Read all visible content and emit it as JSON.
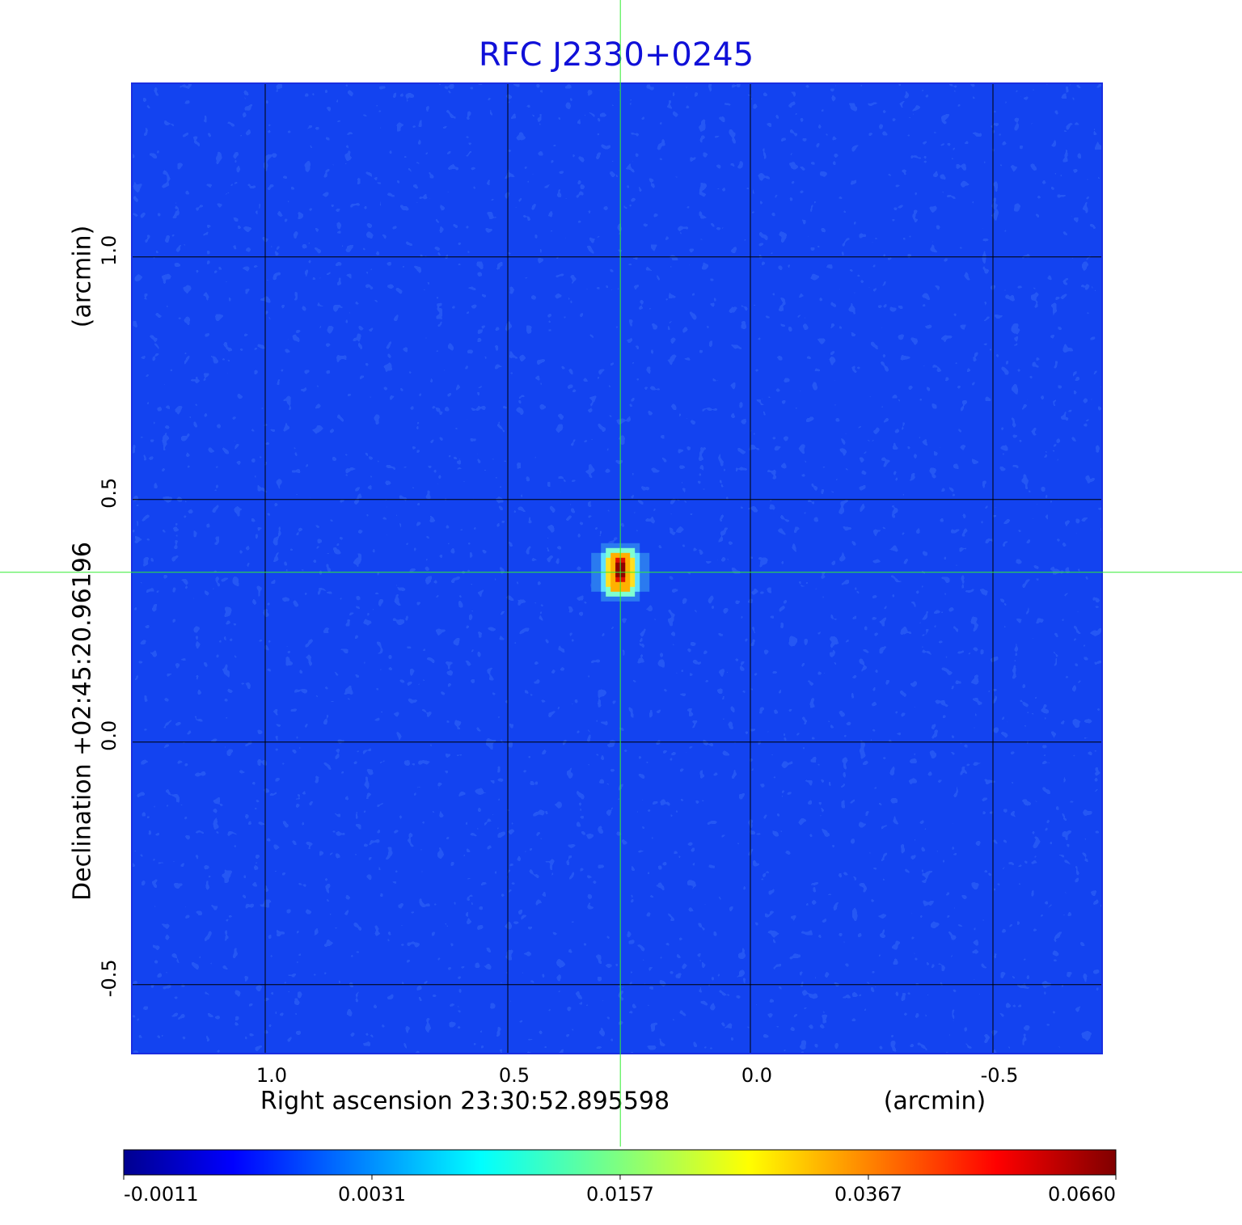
{
  "chart_data": {
    "type": "image",
    "title": "RFC J2330+0245",
    "xlabel": "Right ascension  23:30:52.895598",
    "xunit": "(arcmin)",
    "ylabel": "Declination  +02:45:20.96196",
    "yunit": "(arcmin)",
    "xlim": [
      1.275,
      -0.725
    ],
    "ylim": [
      -0.642,
      1.358
    ],
    "xticks": [
      {
        "value": 1,
        "label": "1.0"
      },
      0.5,
      {
        "value": 0,
        "label": "0.0"
      },
      -0.5
    ],
    "yticks": [
      -0.5,
      {
        "value": 0,
        "label": "0.0"
      },
      0.5,
      {
        "value": 1,
        "label": "1.0"
      }
    ],
    "grid": true,
    "crosshair": {
      "x": 0.268,
      "y": 0.35,
      "color": "#33ee33"
    },
    "colorbar": {
      "scale": "sqrt",
      "lim": [
        -0.0011,
        0.066
      ],
      "ticks": [
        -0.0011,
        0.0031,
        0.0157,
        0.0367,
        {
          "value": 0.066,
          "label": "0.0660"
        }
      ]
    }
  }
}
